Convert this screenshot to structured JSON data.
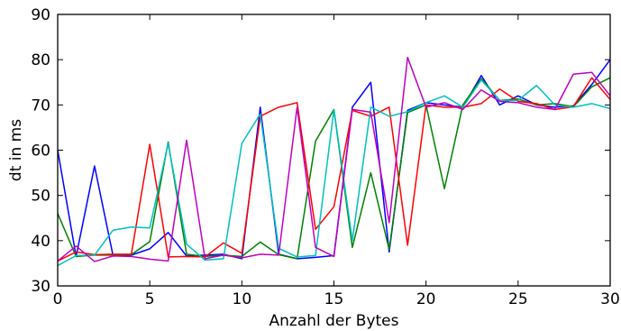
{
  "chart_data": {
    "type": "line",
    "title": "",
    "xlabel": "Anzahl der Bytes",
    "ylabel": "dt in ms",
    "xlim": [
      0,
      30
    ],
    "ylim": [
      30,
      90
    ],
    "xticks": [
      0,
      5,
      10,
      15,
      20,
      25,
      30
    ],
    "yticks": [
      30,
      40,
      50,
      60,
      70,
      80,
      90
    ],
    "grid": false,
    "legend": "none",
    "x": [
      0,
      1,
      2,
      3,
      4,
      5,
      6,
      7,
      8,
      9,
      10,
      11,
      12,
      13,
      14,
      15,
      16,
      17,
      18,
      19,
      20,
      21,
      22,
      23,
      24,
      25,
      26,
      27,
      28,
      29,
      30
    ],
    "series": [
      {
        "color": "#0000ff",
        "values": [
          60,
          36.5,
          56.5,
          36.8,
          36.8,
          38.2,
          41.8,
          36.6,
          36.8,
          37.0,
          36.0,
          69.5,
          37.0,
          36.0,
          36.3,
          36.7,
          69.5,
          75.0,
          37.5,
          68.8,
          70.5,
          70.0,
          69.5,
          76.5,
          70.0,
          72.0,
          70.0,
          69.5,
          69.8,
          74.5,
          80.0
        ]
      },
      {
        "color": "#008000",
        "values": [
          46,
          36.5,
          36.8,
          36.8,
          36.9,
          39.8,
          61.8,
          37.0,
          36.5,
          36.8,
          36.5,
          39.7,
          36.9,
          36.0,
          62.0,
          69.0,
          38.5,
          55.0,
          38.0,
          68.3,
          70.0,
          51.5,
          70.0,
          75.8,
          71.0,
          71.3,
          70.0,
          70.3,
          69.6,
          74.0,
          76.0
        ]
      },
      {
        "color": "#ff0000",
        "values": [
          35.5,
          37.5,
          36.9,
          37.0,
          37.0,
          61.3,
          36.4,
          36.5,
          36.4,
          39.5,
          37.2,
          67.5,
          69.5,
          70.5,
          42.5,
          47.5,
          68.8,
          67.5,
          69.5,
          39.0,
          70.0,
          69.5,
          69.5,
          70.3,
          73.5,
          70.8,
          70.3,
          69.0,
          69.6,
          76.0,
          71.2
        ]
      },
      {
        "color": "#00bfbf",
        "values": [
          34.5,
          36.7,
          36.8,
          42.3,
          43.0,
          42.8,
          61.5,
          39.2,
          35.7,
          36.0,
          61.5,
          68.0,
          38.3,
          36.4,
          36.7,
          69.0,
          40.0,
          69.5,
          67.5,
          68.5,
          70.5,
          72.0,
          69.5,
          75.5,
          71.0,
          71.0,
          74.3,
          70.0,
          69.5,
          70.3,
          69.2
        ]
      },
      {
        "color": "#bf00bf",
        "values": [
          35.5,
          38.8,
          35.4,
          36.6,
          36.5,
          35.9,
          35.5,
          62.2,
          36.0,
          36.8,
          36.2,
          37.0,
          36.8,
          69.5,
          38.5,
          36.5,
          69.0,
          68.4,
          44.0,
          80.5,
          69.5,
          70.5,
          69.0,
          73.3,
          70.8,
          70.5,
          69.5,
          69.0,
          76.8,
          77.2,
          72.0
        ]
      }
    ]
  }
}
